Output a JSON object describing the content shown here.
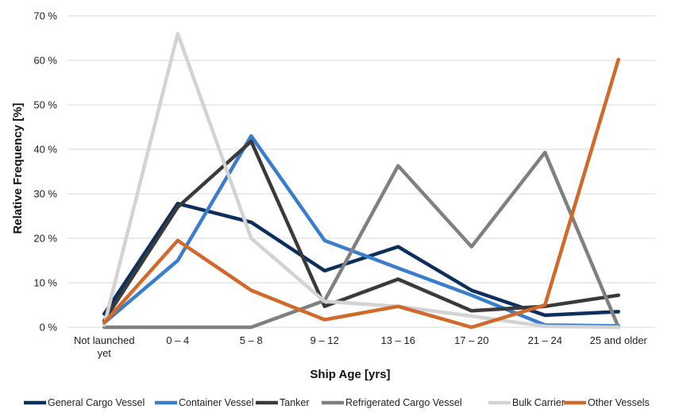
{
  "chart_data": {
    "type": "line",
    "xlabel": "Ship Age [yrs]",
    "ylabel": "Relative Frequency [%]",
    "ylim": [
      0,
      70
    ],
    "y_ticks": [
      "0 %",
      "10 %",
      "20 %",
      "30 %",
      "40 %",
      "50 %",
      "60 %",
      "70 %"
    ],
    "categories": [
      "Not launched yet",
      "0 – 4",
      "5 – 8",
      "9 – 12",
      "13 – 16",
      "17 – 20",
      "21 – 24",
      "25 and older"
    ],
    "grid": "horizontal",
    "legend_position": "bottom",
    "series": [
      {
        "name": "General Cargo Vessel",
        "color": "#0d2f5e",
        "values": [
          3,
          27.8,
          23.6,
          12.7,
          18.1,
          8.3,
          2.7,
          3.5
        ]
      },
      {
        "name": "Container Vessel",
        "color": "#3a7ecb",
        "values": [
          1,
          15,
          43,
          19.5,
          13.3,
          7.2,
          0.5,
          0.3
        ]
      },
      {
        "name": "Tanker",
        "color": "#3a3a3a",
        "values": [
          1.5,
          27,
          41.8,
          4.7,
          10.8,
          3.7,
          4.7,
          7.2
        ]
      },
      {
        "name": "Refrigerated Cargo Vessel",
        "color": "#808080",
        "values": [
          0,
          0,
          0,
          6,
          36.3,
          18.1,
          39.3,
          0
        ]
      },
      {
        "name": "Bulk Carrier",
        "color": "#d3d3d3",
        "values": [
          0.5,
          66,
          20,
          5.8,
          4.7,
          2.5,
          0.2,
          0
        ]
      },
      {
        "name": "Other Vessels",
        "color": "#d0692a",
        "values": [
          1,
          19.5,
          8.3,
          1.7,
          4.7,
          0,
          5,
          60.2
        ]
      }
    ]
  }
}
